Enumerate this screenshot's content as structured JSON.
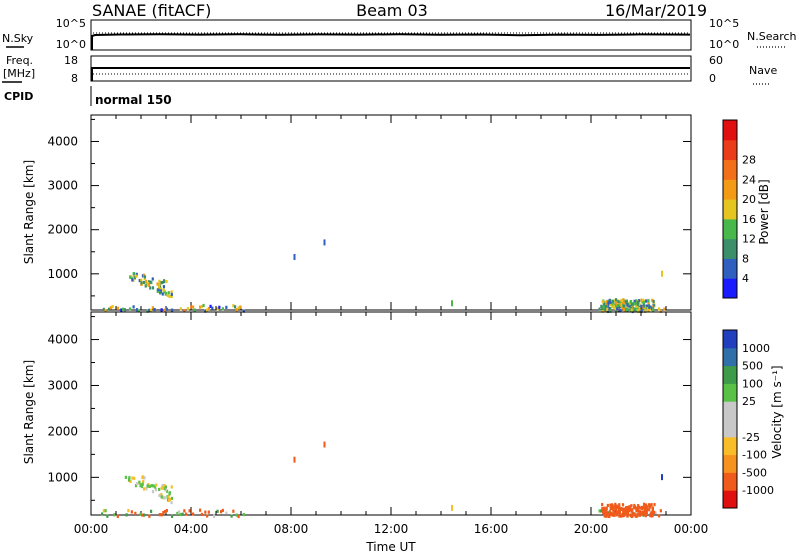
{
  "header": {
    "station": "SANAE (fitACF)",
    "beam": "Beam 03",
    "date": "16/Mar/2019"
  },
  "summary_panels": {
    "nsky_label": "N.Sky",
    "nsky_ticks": [
      "10^5",
      "10^0"
    ],
    "nsearch_label": "N.Search",
    "nsearch_ticks": [
      "10^5",
      "10^0"
    ],
    "freq_label_line1": "Freq.",
    "freq_label_line2": "[MHz]",
    "freq_ticks": [
      "18",
      "8"
    ],
    "nave_label": "Nave",
    "nave_ticks": [
      "60",
      "0"
    ],
    "cpid_label": "CPID",
    "cpid_value": "normal 150"
  },
  "colors": {
    "power_scale": [
      "#1a1aff",
      "#2f5fbf",
      "#3c8f6a",
      "#49b84a",
      "#e5c51f",
      "#f39a17",
      "#f2701a",
      "#ea3c18",
      "#e01010"
    ],
    "velocity_scale": [
      "#e01010",
      "#f05a1a",
      "#f59220",
      "#f9bd2a",
      "#c8c8c8",
      "#c8c8c8",
      "#59c246",
      "#3d9b4a",
      "#2f70a8",
      "#1f3fbf"
    ]
  },
  "chart_data": [
    {
      "type": "heatmap",
      "title": "",
      "xlabel": "",
      "ylabel": "Slant Range [km]",
      "x_ticks": [
        "00:00",
        "04:00",
        "08:00",
        "12:00",
        "16:00",
        "20:00",
        "00:00"
      ],
      "xlim_hours": [
        0,
        24
      ],
      "ylim": [
        180,
        4600
      ],
      "y_ticks": [
        1000,
        2000,
        3000,
        4000
      ],
      "colorbar": {
        "label": "Power [dB]",
        "ticks": [
          "4",
          "8",
          "12",
          "16",
          "20",
          "24",
          "28"
        ],
        "range": [
          0,
          32
        ]
      },
      "data": {
        "near_range_band": {
          "x_hours": [
            [
              0.4,
              6.2
            ],
            [
              20.3,
              22.9
            ]
          ],
          "slant_range_km": [
            180,
            320
          ]
        },
        "blob_early": {
          "x_hours": [
            1.0,
            3.2
          ],
          "slant_range_km": [
            450,
            1050
          ],
          "power_dB": [
            4,
            20
          ]
        },
        "blob_late": {
          "x_hours": [
            20.4,
            22.5
          ],
          "slant_range_km": [
            180,
            450
          ],
          "power_dB": [
            4,
            20
          ]
        },
        "isolated": [
          {
            "x_hours": 8.1,
            "slant_range_km": 1450,
            "power_dB": 6
          },
          {
            "x_hours": 9.3,
            "slant_range_km": 1780,
            "power_dB": 4
          },
          {
            "x_hours": 14.4,
            "slant_range_km": 400,
            "power_dB": 12
          },
          {
            "x_hours": 22.8,
            "slant_range_km": 1070,
            "power_dB": 16
          }
        ]
      }
    },
    {
      "type": "heatmap",
      "title": "",
      "xlabel": "Time UT",
      "ylabel": "Slant Range [km]",
      "x_ticks": [
        "00:00",
        "04:00",
        "08:00",
        "12:00",
        "16:00",
        "20:00",
        "00:00"
      ],
      "xlim_hours": [
        0,
        24
      ],
      "ylim": [
        180,
        4600
      ],
      "y_ticks": [
        1000,
        2000,
        3000,
        4000
      ],
      "colorbar": {
        "label": "Velocity [m s⁻¹]",
        "ticks": [
          "1000",
          "500",
          "100",
          "25",
          "-25",
          "-100",
          "-500",
          "-1000"
        ],
        "range": [
          -1000,
          1000
        ]
      },
      "data": {
        "near_range_band": {
          "x_hours": [
            [
              0.4,
              6.2
            ],
            [
              20.3,
              22.9
            ]
          ],
          "slant_range_km": [
            180,
            320
          ]
        },
        "blob_early": {
          "x_hours": [
            1.0,
            3.2
          ],
          "slant_range_km": [
            450,
            1050
          ],
          "velocity_ms": [
            -100,
            100
          ]
        },
        "blob_late": {
          "x_hours": [
            20.4,
            22.5
          ],
          "slant_range_km": [
            180,
            450
          ],
          "velocity_ms": [
            -500,
            -100
          ]
        },
        "isolated": [
          {
            "x_hours": 8.1,
            "slant_range_km": 1450,
            "velocity_ms": -100
          },
          {
            "x_hours": 9.3,
            "slant_range_km": 1780,
            "velocity_ms": -100
          },
          {
            "x_hours": 14.4,
            "slant_range_km": 400,
            "velocity_ms": -25
          },
          {
            "x_hours": 22.8,
            "slant_range_km": 1070,
            "velocity_ms": 500
          }
        ]
      }
    }
  ]
}
